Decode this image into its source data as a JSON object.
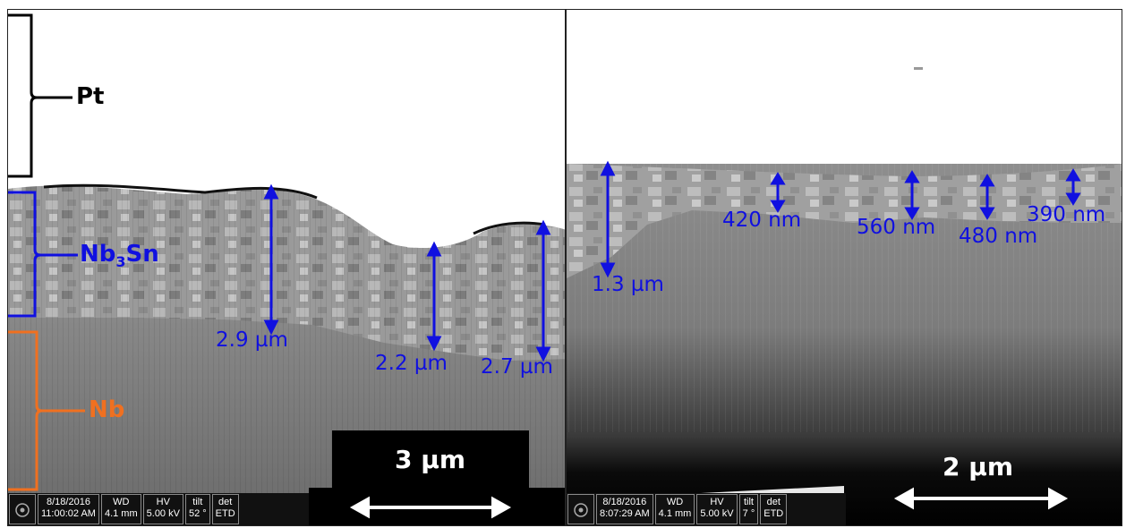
{
  "left_panel": {
    "layers": {
      "pt": "Pt",
      "nb3sn_main": "Nb",
      "nb3sn_sub": "3",
      "nb3sn_tail": "Sn",
      "nb": "Nb"
    },
    "measurements": [
      "2.9 µm",
      "2.2 µm",
      "2.7 µm"
    ],
    "scale_bar": "3 µm",
    "databar": {
      "date": "8/18/2016",
      "time": "11:00:02 AM",
      "wd_label": "WD",
      "wd": "4.1 mm",
      "hv_label": "HV",
      "hv": "5.00 kV",
      "tilt_label": "tilt",
      "tilt": "52 °",
      "det_label": "det",
      "det": "ETD"
    }
  },
  "right_panel": {
    "measurements": [
      "1.3 µm",
      "420 nm",
      "560 nm",
      "480 nm",
      "390 nm"
    ],
    "scale_bar": "2 µm",
    "databar": {
      "date": "8/18/2016",
      "time": "8:07:29 AM",
      "wd_label": "WD",
      "wd": "4.1 mm",
      "hv_label": "HV",
      "hv": "5.00 kV",
      "tilt_label": "tilt",
      "tilt": "7 °",
      "det_label": "det",
      "det": "ETD"
    }
  },
  "colors": {
    "pt": "#000000",
    "nb3sn": "#1010e0",
    "nb": "#f07020",
    "measure": "#1010e0"
  }
}
